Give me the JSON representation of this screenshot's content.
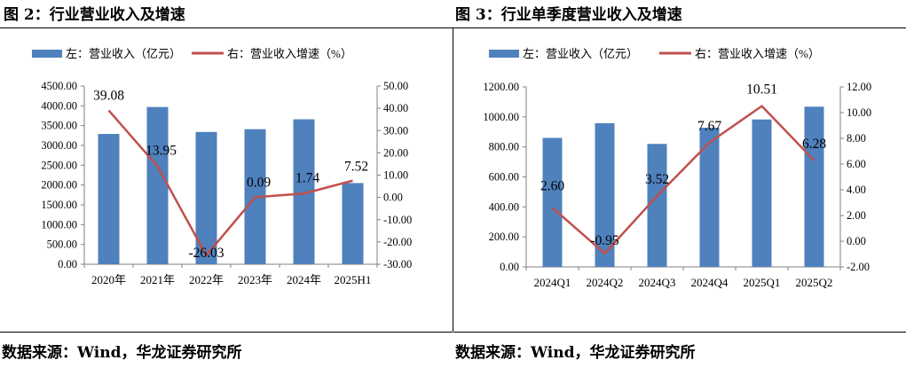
{
  "figures": [
    {
      "title": "图 2：行业营业收入及增速",
      "source": "数据来源：Wind，华龙证券研究所",
      "bar_color": "#4f81bd",
      "line_color": "#c0504d",
      "chart_data": {
        "type": "bar",
        "categories": [
          "2020年",
          "2021年",
          "2022年",
          "2023年",
          "2024年",
          "2025H1"
        ],
        "series": [
          {
            "name": "左：营业收入（亿元）",
            "type": "bar",
            "axis": "left",
            "values": [
              3290,
              3970,
              3340,
              3410,
              3660,
              2050
            ]
          },
          {
            "name": "右：营业收入增速（%）",
            "type": "line",
            "axis": "right",
            "values": [
              39.08,
              13.95,
              -26.03,
              0.09,
              1.74,
              7.52
            ],
            "labels": [
              "39.08",
              "13.95",
              "-26.03",
              "0.09",
              "1.74",
              "7.52"
            ]
          }
        ],
        "left_axis": {
          "min": 0,
          "max": 4500,
          "step": 500,
          "ticks": [
            "0.00",
            "500.00",
            "1000.00",
            "1500.00",
            "2000.00",
            "2500.00",
            "3000.00",
            "3500.00",
            "4000.00",
            "4500.00"
          ]
        },
        "right_axis": {
          "min": -30,
          "max": 50,
          "step": 10,
          "ticks": [
            "-30.00",
            "-20.00",
            "-10.00",
            "0.00",
            "10.00",
            "20.00",
            "30.00",
            "40.00",
            "50.00"
          ]
        },
        "legend_position": "top",
        "grid": false
      }
    },
    {
      "title": "图 3：行业单季度营业收入及增速",
      "source": "数据来源：Wind，华龙证券研究所",
      "bar_color": "#4f81bd",
      "line_color": "#c0504d",
      "chart_data": {
        "type": "bar",
        "categories": [
          "2024Q1",
          "2024Q2",
          "2024Q3",
          "2024Q4",
          "2025Q1",
          "2025Q2"
        ],
        "series": [
          {
            "name": "左：营业收入（亿元）",
            "type": "bar",
            "axis": "left",
            "values": [
              860,
              958,
              820,
              928,
              983,
              1068
            ]
          },
          {
            "name": "右：营业收入增速（%）",
            "type": "line",
            "axis": "right",
            "values": [
              2.6,
              -0.95,
              3.52,
              7.67,
              10.51,
              6.28
            ],
            "labels": [
              "2.60",
              "-0.95",
              "3.52",
              "7.67",
              "10.51",
              "6.28"
            ]
          }
        ],
        "left_axis": {
          "min": 0,
          "max": 1200,
          "step": 200,
          "ticks": [
            "0.00",
            "200.00",
            "400.00",
            "600.00",
            "800.00",
            "1000.00",
            "1200.00"
          ]
        },
        "right_axis": {
          "min": -2,
          "max": 12,
          "step": 2,
          "ticks": [
            "-2.00",
            "0.00",
            "2.00",
            "4.00",
            "6.00",
            "8.00",
            "10.00",
            "12.00"
          ]
        },
        "legend_position": "top",
        "grid": false
      }
    }
  ]
}
